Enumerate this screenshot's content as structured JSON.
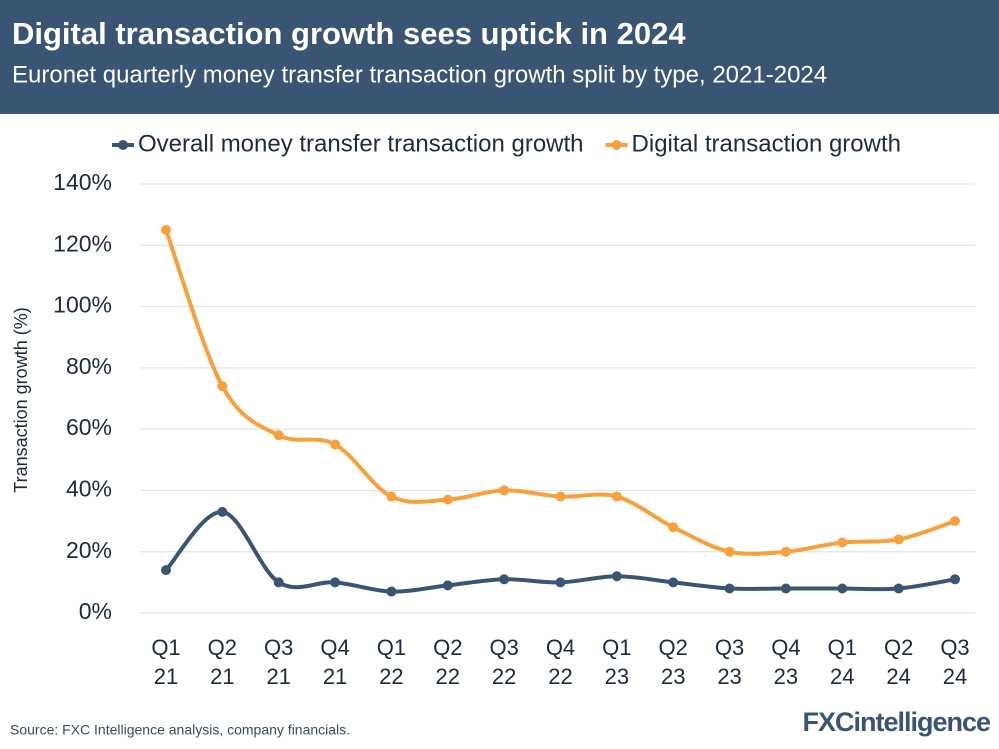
{
  "chart_data": {
    "type": "line",
    "title": "Digital transaction growth sees uptick in 2024",
    "subtitle": "Euronet quarterly money transfer transaction growth split by type, 2021-2024",
    "y_label": "Transaction growth (%)",
    "source": "Source: FXC Intelligence analysis, company financials.",
    "logo": "FXCintelligence",
    "categories": [
      "Q1\n21",
      "Q2\n21",
      "Q3\n21",
      "Q4\n21",
      "Q1\n22",
      "Q2\n22",
      "Q3\n22",
      "Q4\n22",
      "Q1\n23",
      "Q2\n23",
      "Q3\n23",
      "Q4\n23",
      "Q1\n24",
      "Q2\n24",
      "Q3\n24"
    ],
    "series": [
      {
        "name": "Overall money transfer transaction growth",
        "color": "#3a5573",
        "values": [
          14,
          33,
          10,
          10,
          7,
          9,
          11,
          10,
          12,
          10,
          8,
          8,
          8,
          8,
          11
        ]
      },
      {
        "name": "Digital transaction growth",
        "color": "#f7a03c",
        "values": [
          125,
          74,
          58,
          55,
          38,
          37,
          40,
          38,
          38,
          28,
          20,
          20,
          23,
          24,
          30
        ]
      }
    ],
    "ylim": [
      0,
      140
    ],
    "yticks": [
      {
        "value": 0,
        "label": "0%"
      },
      {
        "value": 20,
        "label": "20%"
      },
      {
        "value": 40,
        "label": "40%"
      },
      {
        "value": 60,
        "label": "60%"
      },
      {
        "value": 80,
        "label": "80%"
      },
      {
        "value": 100,
        "label": "100%"
      },
      {
        "value": 120,
        "label": "120%"
      },
      {
        "value": 140,
        "label": "140%"
      }
    ],
    "grid": true,
    "legend": "top"
  }
}
